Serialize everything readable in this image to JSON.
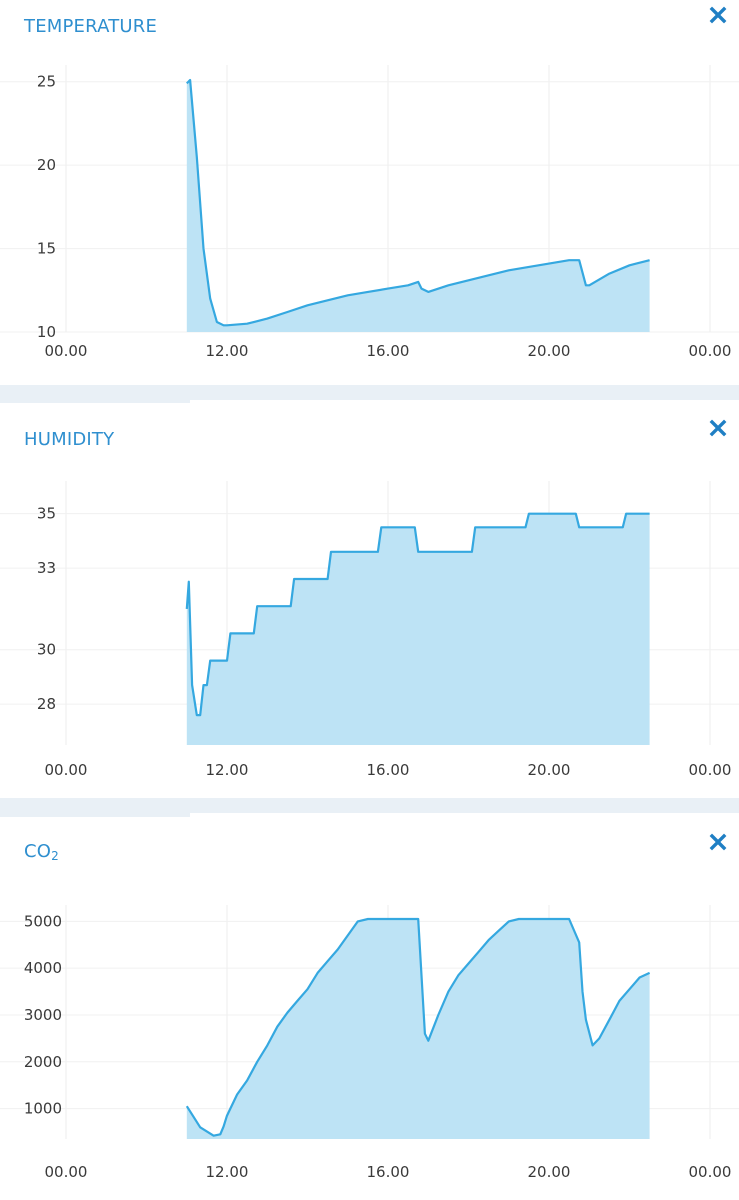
{
  "panels": [
    {
      "title": "TEMPERATURE",
      "chart_data": {
        "type": "area",
        "title": "TEMPERATURE",
        "xlabel": "",
        "ylabel": "",
        "x_ticks": [
          "00.00",
          "12.00",
          "16.00",
          "20.00",
          "00.00"
        ],
        "x_range": [
          "08:00",
          "24:00"
        ],
        "ylim": [
          10,
          26
        ],
        "y_ticks": [
          10,
          15,
          20,
          25
        ],
        "grid": true,
        "series": [
          {
            "color": "#35a8e0",
            "x": [
              "11:00",
              "11:05",
              "11:15",
              "11:25",
              "11:35",
              "11:45",
              "11:55",
              "12:00",
              "12:30",
              "13:00",
              "13:30",
              "14:00",
              "14:30",
              "15:00",
              "15:30",
              "16:00",
              "16:30",
              "16:45",
              "16:50",
              "17:00",
              "17:30",
              "18:00",
              "18:30",
              "19:00",
              "19:30",
              "20:00",
              "20:30",
              "20:45",
              "20:55",
              "21:00",
              "21:30",
              "22:00",
              "22:30"
            ],
            "values": [
              24.9,
              25.1,
              20.5,
              15.0,
              12.0,
              10.6,
              10.4,
              10.4,
              10.5,
              10.8,
              11.2,
              11.6,
              11.9,
              12.2,
              12.4,
              12.6,
              12.8,
              13.0,
              12.6,
              12.4,
              12.8,
              13.1,
              13.4,
              13.7,
              13.9,
              14.1,
              14.3,
              14.3,
              12.8,
              12.8,
              13.5,
              14.0,
              14.3
            ]
          }
        ]
      }
    },
    {
      "title": "HUMIDITY",
      "chart_data": {
        "type": "area",
        "title": "HUMIDITY",
        "xlabel": "",
        "ylabel": "",
        "x_ticks": [
          "00.00",
          "12.00",
          "16.00",
          "20.00",
          "00.00"
        ],
        "x_range": [
          "08:00",
          "24:00"
        ],
        "ylim": [
          26.5,
          36.2
        ],
        "y_ticks": [
          28,
          30,
          33,
          35
        ],
        "grid": true,
        "series": [
          {
            "color": "#35a8e0",
            "x": [
              "11:00",
              "11:03",
              "11:08",
              "11:15",
              "11:20",
              "11:25",
              "11:30",
              "11:35",
              "11:40",
              "11:45",
              "11:50",
              "11:52",
              "12:00",
              "12:05",
              "12:10",
              "12:40",
              "12:45",
              "13:35",
              "13:40",
              "14:30",
              "14:35",
              "15:45",
              "15:50",
              "16:40",
              "16:45",
              "18:05",
              "18:10",
              "19:25",
              "19:30",
              "20:40",
              "20:45",
              "21:50",
              "21:55",
              "22:30"
            ],
            "values": [
              31.5,
              32.5,
              28.7,
              27.6,
              27.6,
              28.7,
              28.7,
              29.6,
              29.6,
              29.6,
              29.6,
              29.6,
              29.6,
              30.6,
              30.6,
              30.6,
              31.6,
              31.6,
              32.6,
              32.6,
              33.6,
              33.6,
              34.5,
              34.5,
              33.6,
              33.6,
              34.5,
              34.5,
              35.0,
              35.0,
              34.5,
              34.5,
              35.0,
              35.0
            ]
          }
        ]
      }
    },
    {
      "title": "CO",
      "title_sub": "2",
      "chart_data": {
        "type": "area",
        "title": "CO2",
        "xlabel": "",
        "ylabel": "",
        "x_ticks": [
          "00.00",
          "12.00",
          "16.00",
          "20.00",
          "00.00"
        ],
        "x_range": [
          "08:00",
          "24:00"
        ],
        "ylim": [
          350,
          5350
        ],
        "y_ticks": [
          1000,
          2000,
          3000,
          4000,
          5000
        ],
        "grid": true,
        "series": [
          {
            "color": "#35a8e0",
            "x": [
              "11:00",
              "11:20",
              "11:40",
              "11:50",
              "11:55",
              "12:00",
              "12:15",
              "12:30",
              "12:45",
              "13:00",
              "13:15",
              "13:30",
              "13:45",
              "14:00",
              "14:15",
              "14:30",
              "14:45",
              "15:00",
              "15:15",
              "15:30",
              "15:45",
              "16:00",
              "16:15",
              "16:30",
              "16:45",
              "16:55",
              "17:00",
              "17:15",
              "17:30",
              "17:45",
              "18:00",
              "18:15",
              "18:30",
              "18:45",
              "19:00",
              "19:15",
              "19:30",
              "19:45",
              "20:00",
              "20:15",
              "20:30",
              "20:45",
              "20:50",
              "20:55",
              "21:05",
              "21:15",
              "21:30",
              "21:45",
              "22:00",
              "22:15",
              "22:30"
            ],
            "values": [
              1050,
              600,
              420,
              450,
              620,
              850,
              1300,
              1600,
              2000,
              2350,
              2750,
              3050,
              3300,
              3550,
              3900,
              4150,
              4400,
              4700,
              5000,
              5050,
              5050,
              5050,
              5050,
              5050,
              5050,
              2600,
              2450,
              3000,
              3500,
              3850,
              4100,
              4350,
              4600,
              4800,
              5000,
              5050,
              5050,
              5050,
              5050,
              5050,
              5050,
              4550,
              3500,
              2900,
              2350,
              2500,
              2900,
              3300,
              3550,
              3800,
              3900
            ]
          }
        ]
      }
    }
  ],
  "colors": {
    "accent": "#35a8e0",
    "fill": "#bde3f5",
    "title": "#2f8fcf",
    "close": "#1f7fc4",
    "separator": "#e9f0f6"
  },
  "icons": {
    "close": "close-icon"
  }
}
